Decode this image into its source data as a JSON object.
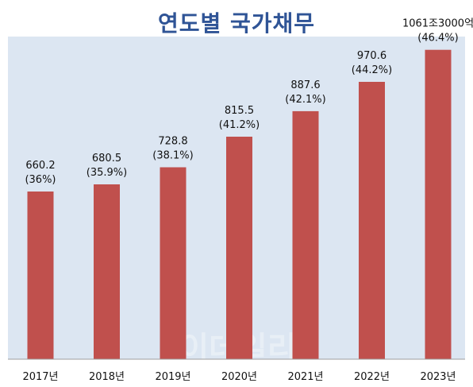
{
  "watermark": "이데일리",
  "chart_data": {
    "type": "bar",
    "title": "연도별 국가채무",
    "categories": [
      "2017년",
      "2018년",
      "2019년",
      "2020년",
      "2021년",
      "2022년",
      "2023년"
    ],
    "values": [
      660.2,
      680.5,
      728.8,
      815.5,
      887.6,
      970.6,
      1061.3
    ],
    "value_labels": [
      "660.2",
      "680.5",
      "728.8",
      "815.5",
      "887.6",
      "970.6",
      "1061조3000억"
    ],
    "percent_labels": [
      "(36%)",
      "(35.9%)",
      "(38.1%)",
      "(41.2%)",
      "(42.1%)",
      "(44.2%)",
      "(46.4%)"
    ],
    "colors": {
      "bar": "#c0504d",
      "plot_background": "#dce6f2",
      "title": "#2f5496"
    },
    "grid": false,
    "legend": "none"
  }
}
